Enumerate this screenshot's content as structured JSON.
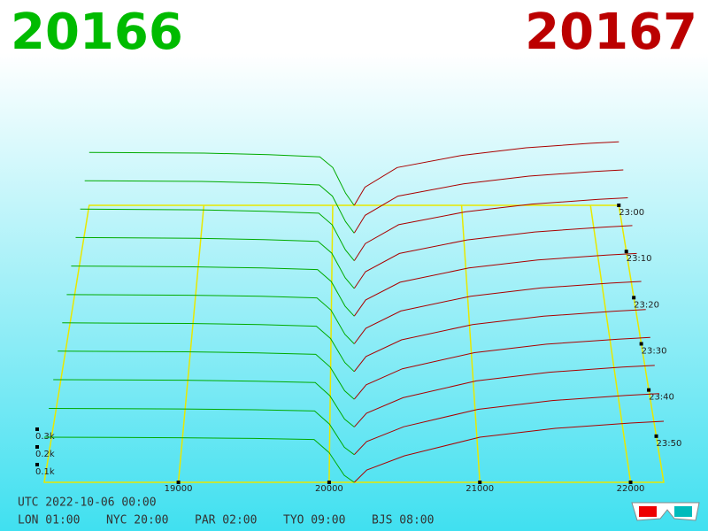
{
  "chart_data": {
    "type": "depth3d",
    "bid_price": "20166",
    "ask_price": "20167",
    "bid_color": "#00aa00",
    "ask_color": "#aa0000",
    "xlim": [
      18110,
      22220
    ],
    "xticks": [
      19000,
      20000,
      21000,
      22000
    ],
    "zticks": [
      {
        "value": 100,
        "label": "0.1k"
      },
      {
        "value": 200,
        "label": "0.2k"
      },
      {
        "value": 300,
        "label": "0.3k"
      }
    ],
    "tlim": [
      0,
      60
    ],
    "tticks": [
      {
        "value": 60,
        "label": "23:00"
      },
      {
        "value": 50,
        "label": "23:10"
      },
      {
        "value": 40,
        "label": "23:20"
      },
      {
        "value": 30,
        "label": "23:30"
      },
      {
        "value": 20,
        "label": "23:40"
      },
      {
        "value": 10,
        "label": "23:50"
      }
    ],
    "bid_prices": [
      18110,
      19000,
      19500,
      19900,
      20000,
      20100,
      20166
    ],
    "ask_prices": [
      20167,
      20250,
      20500,
      21000,
      21500,
      22000,
      22220
    ],
    "snapshots": [
      {
        "t": 60,
        "bids": [
          350,
          345,
          335,
          320,
          250,
          80,
          0
        ],
        "asks": [
          0,
          120,
          250,
          330,
          380,
          410,
          420
        ]
      },
      {
        "t": 54,
        "bids": [
          340,
          335,
          325,
          312,
          240,
          75,
          0
        ],
        "asks": [
          0,
          115,
          240,
          320,
          370,
          400,
          410
        ]
      },
      {
        "t": 48,
        "bids": [
          330,
          325,
          316,
          304,
          230,
          70,
          0
        ],
        "asks": [
          0,
          110,
          230,
          312,
          362,
          392,
          402
        ]
      },
      {
        "t": 42,
        "bids": [
          320,
          315,
          307,
          296,
          222,
          66,
          0
        ],
        "asks": [
          0,
          105,
          220,
          305,
          355,
          385,
          395
        ]
      },
      {
        "t": 36,
        "bids": [
          310,
          305,
          298,
          288,
          214,
          62,
          0
        ],
        "asks": [
          0,
          100,
          210,
          298,
          348,
          378,
          388
        ]
      },
      {
        "t": 30,
        "bids": [
          300,
          296,
          290,
          280,
          206,
          58,
          0
        ],
        "asks": [
          0,
          95,
          200,
          290,
          340,
          370,
          380
        ]
      },
      {
        "t": 24,
        "bids": [
          292,
          288,
          282,
          272,
          198,
          54,
          0
        ],
        "asks": [
          0,
          90,
          190,
          282,
          332,
          362,
          372
        ]
      },
      {
        "t": 18,
        "bids": [
          284,
          280,
          274,
          265,
          190,
          50,
          0
        ],
        "asks": [
          0,
          85,
          180,
          275,
          325,
          355,
          365
        ]
      },
      {
        "t": 12,
        "bids": [
          275,
          272,
          266,
          258,
          182,
          46,
          0
        ],
        "asks": [
          0,
          80,
          170,
          268,
          318,
          348,
          358
        ]
      },
      {
        "t": 6,
        "bids": [
          265,
          262,
          257,
          250,
          175,
          42,
          0
        ],
        "asks": [
          0,
          75,
          160,
          260,
          310,
          340,
          350
        ]
      },
      {
        "t": 0,
        "bids": [
          255,
          252,
          248,
          242,
          168,
          40,
          0
        ],
        "asks": [
          0,
          70,
          150,
          255,
          305,
          335,
          345
        ]
      }
    ],
    "clock": {
      "utc": "UTC 2022-10-06 00:00",
      "cities": [
        "LON 01:00",
        "NYC 20:00",
        "PAR 02:00",
        "TYO 09:00",
        "BJS 08:00"
      ]
    }
  }
}
